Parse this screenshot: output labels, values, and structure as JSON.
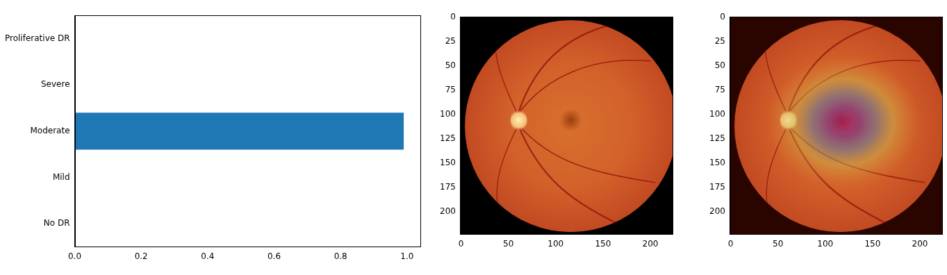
{
  "chart_data": [
    {
      "type": "bar",
      "orientation": "horizontal",
      "categories": [
        "No DR",
        "Mild",
        "Moderate",
        "Severe",
        "Proliferative DR"
      ],
      "values": [
        0,
        0,
        0.99,
        0,
        0
      ],
      "color": "#1f77b4",
      "xlim": [
        0,
        1.04
      ],
      "xticks": [
        {
          "value": 0,
          "label": "0.0"
        },
        {
          "value": 0.2,
          "label": "0.2"
        },
        {
          "value": 0.4,
          "label": "0.4"
        },
        {
          "value": 0.6,
          "label": "0.6"
        },
        {
          "value": 0.8,
          "label": "0.8"
        },
        {
          "value": 1,
          "label": "1.0"
        }
      ],
      "grid": false
    },
    {
      "type": "image",
      "xlim": [
        -0.5,
        223.5
      ],
      "ylim": [
        223.5,
        -0.5
      ],
      "xticks": [
        0,
        50,
        100,
        150,
        200
      ],
      "yticks": [
        0,
        25,
        50,
        75,
        100,
        125,
        150,
        175,
        200
      ],
      "grid": false
    },
    {
      "type": "image",
      "xlim": [
        -0.5,
        223.5
      ],
      "ylim": [
        223.5,
        -0.5
      ],
      "xticks": [
        0,
        50,
        100,
        150,
        200
      ],
      "yticks": [
        0,
        25,
        50,
        75,
        100,
        125,
        150,
        175,
        200
      ],
      "grid": false
    }
  ]
}
